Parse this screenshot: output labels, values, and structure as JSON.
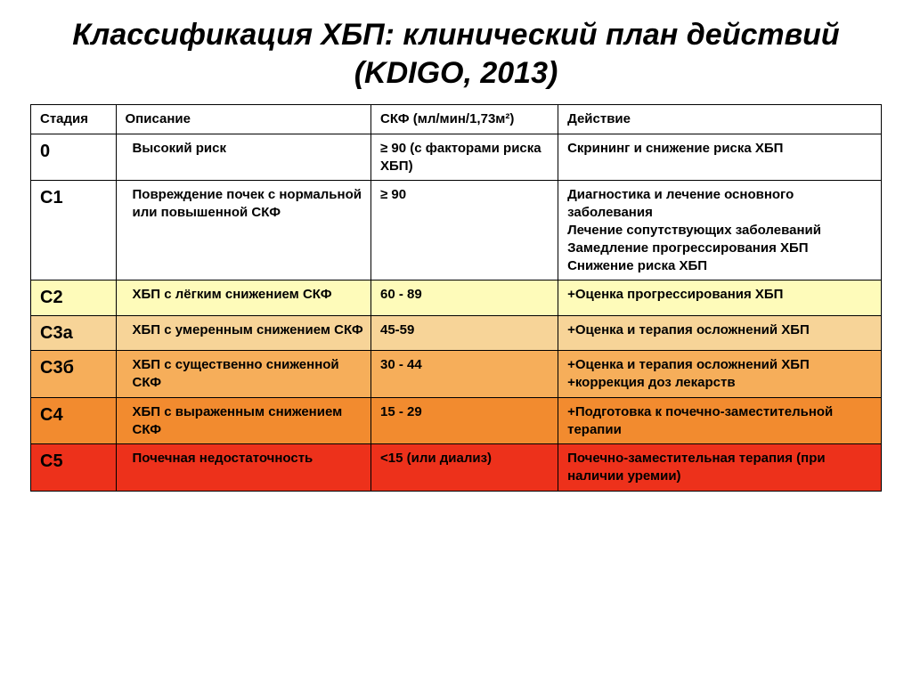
{
  "title": "Классификация ХБП: клинический план действий (KDIGO, 2013)",
  "headers": {
    "stage": "Стадия",
    "desc": "Описание",
    "gfr": "СКФ (мл/мин/1,73м²)",
    "action": "Действие"
  },
  "row_colors": {
    "white": "#ffffff",
    "yellow": "#fefbba",
    "tan": "#f7d498",
    "orange": "#f6ae5a",
    "dorange": "#f28b2f",
    "red": "#ed311b"
  },
  "rows": [
    {
      "stage": "0",
      "desc": "Высокий риск",
      "gfr": "≥ 90 (с факторами риска ХБП)",
      "action": "Скрининг и снижение риска ХБП",
      "bg": "white"
    },
    {
      "stage": "С1",
      "desc": "Повреждение почек с нормальной или повышенной СКФ",
      "gfr": "≥ 90",
      "action": "Диагностика и лечение основного заболевания\nЛечение сопутствующих заболеваний\nЗамедление прогрессирования ХБП\nСнижение риска ХБП",
      "bg": "white"
    },
    {
      "stage": "С2",
      "desc": "ХБП с лёгким снижением СКФ",
      "gfr": "60 - 89",
      "action": "+Оценка прогрессирования ХБП",
      "bg": "yellow"
    },
    {
      "stage": "С3а",
      "desc": "ХБП с умеренным снижением СКФ",
      "gfr": "45-59",
      "action": "+Оценка и терапия осложнений ХБП",
      "bg": "tan"
    },
    {
      "stage": "С3б",
      "desc": "ХБП с существенно сниженной СКФ",
      "gfr": "30 - 44",
      "action": "+Оценка и терапия осложнений ХБП +коррекция доз лекарств",
      "bg": "orange"
    },
    {
      "stage": "С4",
      "desc": "ХБП с выраженным снижением СКФ",
      "gfr": "15 - 29",
      "action": "+Подготовка к почечно-заместительной терапии",
      "bg": "dorange"
    },
    {
      "stage": "С5",
      "desc": "Почечная недостаточность",
      "gfr": "<15 (или диализ)",
      "action": "Почечно-заместительная терапия (при наличии уремии)",
      "bg": "red"
    }
  ]
}
